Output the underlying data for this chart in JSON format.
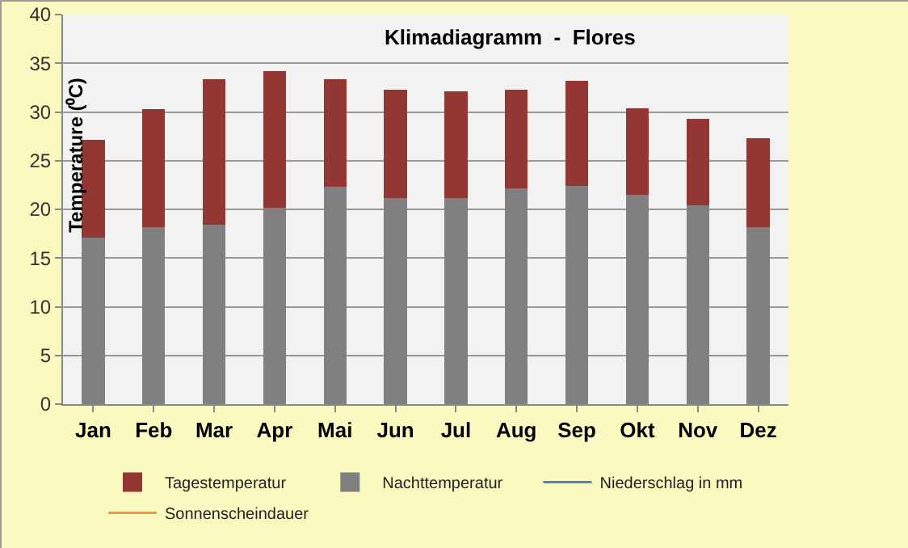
{
  "chart_data": {
    "type": "bar",
    "title": "Klimadiagramm  -  Flores",
    "ylabel": "Temperature (⁰C)",
    "categories": [
      "Jan",
      "Feb",
      "Mar",
      "Apr",
      "Mai",
      "Jun",
      "Jul",
      "Aug",
      "Sep",
      "Okt",
      "Nov",
      "Dez"
    ],
    "stacked": true,
    "series": [
      {
        "name": "Nachttemperatur",
        "color": "#808080",
        "values": [
          17.1,
          18.2,
          18.4,
          20.2,
          22.3,
          21.2,
          21.2,
          22.2,
          22.4,
          21.5,
          20.4,
          18.2
        ]
      },
      {
        "name": "Tagestemperatur",
        "color": "#943634",
        "values": [
          10.0,
          12.1,
          15.0,
          14.0,
          11.1,
          11.1,
          10.9,
          10.1,
          10.8,
          8.9,
          8.9,
          9.1
        ]
      },
      {
        "name": "Niederschlag in mm",
        "type": "line",
        "color": "#4f81bd",
        "values": [
          null,
          null,
          null,
          null,
          null,
          null,
          null,
          null,
          null,
          null,
          null,
          null
        ]
      },
      {
        "name": "Sonnenscheindauer",
        "type": "line",
        "color": "#f79646",
        "values": [
          null,
          null,
          null,
          null,
          null,
          null,
          null,
          null,
          null,
          null,
          null,
          null
        ]
      }
    ],
    "ylim": [
      0,
      40
    ],
    "yticks": [
      0,
      5,
      10,
      15,
      20,
      25,
      30,
      35,
      40
    ],
    "grid": "y",
    "legend": "bottom"
  }
}
